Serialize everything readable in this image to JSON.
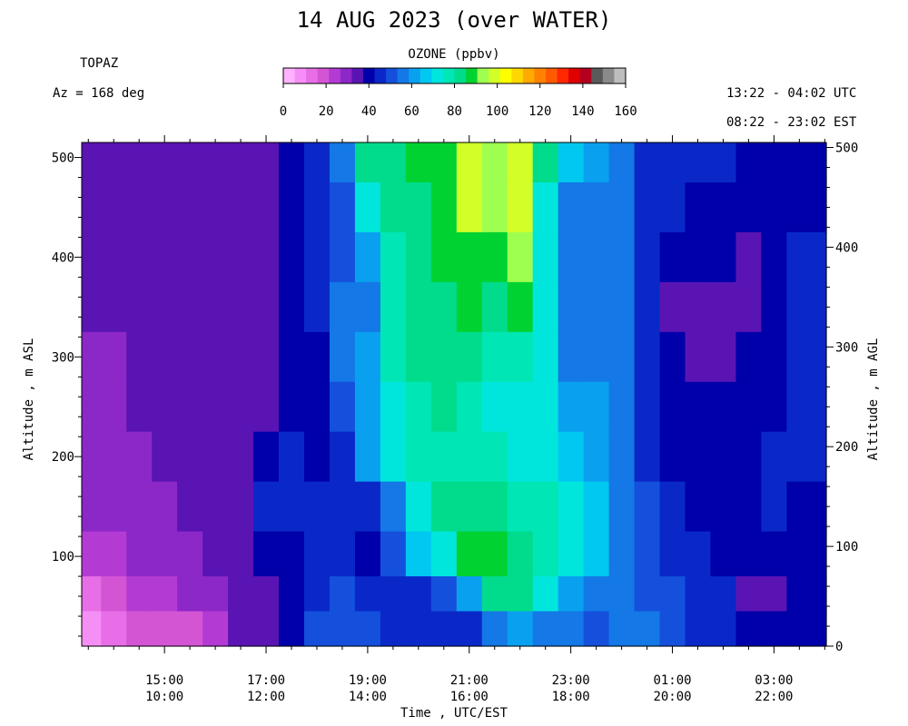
{
  "chart_data": {
    "type": "heatmap",
    "title": "14 AUG 2023 (over WATER)",
    "site": "TOPAZ",
    "azimuth": "Az = 168 deg",
    "time_range_utc": "13:22 - 04:02 UTC",
    "time_range_est": "08:22 - 23:02 EST",
    "colorbar": {
      "label": "OZONE (ppbv)",
      "ticks": [
        "0",
        "20",
        "40",
        "60",
        "80",
        "100",
        "120",
        "140",
        "160"
      ],
      "range": [
        0,
        160
      ],
      "colors": [
        "#ffb3ff",
        "#f58ff5",
        "#e86ee8",
        "#d455d4",
        "#b33bd4",
        "#8c28c8",
        "#5a14b4",
        "#0000aa",
        "#0a28c8",
        "#1450dc",
        "#1478e6",
        "#0aa0f0",
        "#00c8f0",
        "#00e6dc",
        "#00e6b4",
        "#00dc8c",
        "#00d232",
        "#9eff50",
        "#d2ff28",
        "#ffff00",
        "#ffd700",
        "#ffaa00",
        "#ff8200",
        "#ff5a00",
        "#ff2800",
        "#e00000",
        "#b4001e",
        "#5a5a5a",
        "#8a8a8a",
        "#bebebe"
      ]
    },
    "xlabel": "Time , UTC/EST",
    "ylabel_left": "Altitude , m ASL",
    "ylabel_right": "Altitude , m AGL",
    "x_ticks_utc": [
      "15:00",
      "17:00",
      "19:00",
      "21:00",
      "23:00",
      "01:00",
      "03:00"
    ],
    "x_ticks_est": [
      "10:00",
      "12:00",
      "14:00",
      "16:00",
      "18:00",
      "20:00",
      "22:00"
    ],
    "x_tick_hours": [
      15,
      17,
      19,
      21,
      23,
      25,
      27
    ],
    "x_range_hours": [
      13.37,
      28.03
    ],
    "y_ticks_left": [
      "100",
      "200",
      "300",
      "400",
      "500"
    ],
    "y_ticks_left_values": [
      100,
      200,
      300,
      400,
      500
    ],
    "y_ticks_right": [
      "0",
      "100",
      "200",
      "300",
      "400",
      "500"
    ],
    "y_ticks_right_values": [
      10,
      110,
      210,
      310,
      410,
      510
    ],
    "y_range": [
      10,
      515
    ],
    "heights": [
      500,
      450,
      400,
      350,
      300,
      250,
      200,
      150,
      100,
      60,
      30
    ],
    "series": [
      {
        "hour": 13.5,
        "ozone": [
          33,
          33,
          33,
          33,
          31,
          31,
          31,
          27,
          22,
          12,
          10
        ]
      },
      {
        "hour": 14.0,
        "ozone": [
          33,
          33,
          33,
          33,
          31,
          31,
          31,
          28,
          25,
          20,
          14
        ]
      },
      {
        "hour": 14.5,
        "ozone": [
          33,
          33,
          33,
          33,
          33,
          33,
          31,
          30,
          27,
          22,
          18
        ]
      },
      {
        "hour": 15.0,
        "ozone": [
          33,
          33,
          33,
          33,
          33,
          33,
          33,
          30,
          28,
          24,
          20
        ]
      },
      {
        "hour": 15.5,
        "ozone": [
          33,
          33,
          33,
          33,
          33,
          33,
          33,
          33,
          30,
          27,
          20
        ]
      },
      {
        "hour": 16.0,
        "ozone": [
          36,
          36,
          36,
          36,
          36,
          34,
          34,
          34,
          33,
          30,
          26
        ]
      },
      {
        "hour": 16.5,
        "ozone": [
          36,
          36,
          36,
          36,
          36,
          36,
          36,
          36,
          36,
          33,
          33
        ]
      },
      {
        "hour": 17.0,
        "ozone": [
          36,
          36,
          36,
          37,
          37,
          37,
          42,
          44,
          38,
          36,
          36
        ]
      },
      {
        "hour": 17.5,
        "ozone": [
          40,
          40,
          40,
          40,
          40,
          40,
          44,
          46,
          40,
          40,
          38
        ]
      },
      {
        "hour": 18.0,
        "ozone": [
          44,
          46,
          46,
          46,
          42,
          42,
          42,
          44,
          44,
          44,
          50
        ]
      },
      {
        "hour": 18.5,
        "ozone": [
          54,
          52,
          50,
          56,
          56,
          50,
          46,
          44,
          46,
          48,
          52
        ]
      },
      {
        "hour": 19.0,
        "ozone": [
          80,
          72,
          60,
          56,
          60,
          62,
          62,
          44,
          40,
          46,
          48
        ]
      },
      {
        "hour": 19.5,
        "ozone": [
          80,
          80,
          78,
          76,
          76,
          74,
          70,
          58,
          48,
          46,
          46
        ]
      },
      {
        "hour": 20.0,
        "ozone": [
          86,
          84,
          84,
          82,
          80,
          78,
          76,
          74,
          66,
          44,
          46
        ]
      },
      {
        "hour": 20.5,
        "ozone": [
          88,
          88,
          86,
          84,
          82,
          80,
          78,
          80,
          72,
          50,
          46
        ]
      },
      {
        "hour": 21.0,
        "ozone": [
          96,
          96,
          90,
          86,
          80,
          76,
          76,
          82,
          86,
          62,
          46
        ]
      },
      {
        "hour": 21.5,
        "ozone": [
          94,
          92,
          88,
          84,
          78,
          72,
          76,
          82,
          86,
          80,
          54
        ]
      },
      {
        "hour": 22.0,
        "ozone": [
          98,
          96,
          94,
          86,
          78,
          72,
          72,
          76,
          82,
          82,
          60
        ]
      },
      {
        "hour": 22.5,
        "ozone": [
          80,
          74,
          70,
          70,
          72,
          72,
          72,
          76,
          78,
          70,
          56
        ]
      },
      {
        "hour": 23.0,
        "ozone": [
          66,
          58,
          58,
          58,
          58,
          62,
          68,
          74,
          72,
          60,
          54
        ]
      },
      {
        "hour": 23.5,
        "ozone": [
          60,
          56,
          54,
          56,
          58,
          62,
          62,
          64,
          64,
          56,
          52
        ]
      },
      {
        "hour": 24.0,
        "ozone": [
          58,
          56,
          56,
          56,
          54,
          54,
          54,
          56,
          56,
          54,
          54
        ]
      },
      {
        "hour": 24.5,
        "ozone": [
          46,
          46,
          44,
          46,
          46,
          46,
          46,
          48,
          50,
          52,
          54
        ]
      },
      {
        "hour": 25.0,
        "ozone": [
          46,
          44,
          38,
          36,
          38,
          42,
          42,
          44,
          44,
          48,
          52
        ]
      },
      {
        "hour": 25.5,
        "ozone": [
          46,
          42,
          38,
          34,
          36,
          40,
          40,
          42,
          44,
          46,
          46
        ]
      },
      {
        "hour": 26.0,
        "ozone": [
          46,
          40,
          38,
          36,
          36,
          40,
          40,
          40,
          42,
          44,
          44
        ]
      },
      {
        "hour": 26.5,
        "ozone": [
          42,
          42,
          36,
          36,
          40,
          40,
          40,
          40,
          38,
          36,
          42
        ]
      },
      {
        "hour": 27.0,
        "ozone": [
          40,
          40,
          38,
          40,
          42,
          42,
          44,
          44,
          42,
          36,
          40
        ]
      },
      {
        "hour": 27.5,
        "ozone": [
          40,
          40,
          44,
          46,
          46,
          46,
          46,
          42,
          40,
          38,
          38
        ]
      }
    ]
  }
}
